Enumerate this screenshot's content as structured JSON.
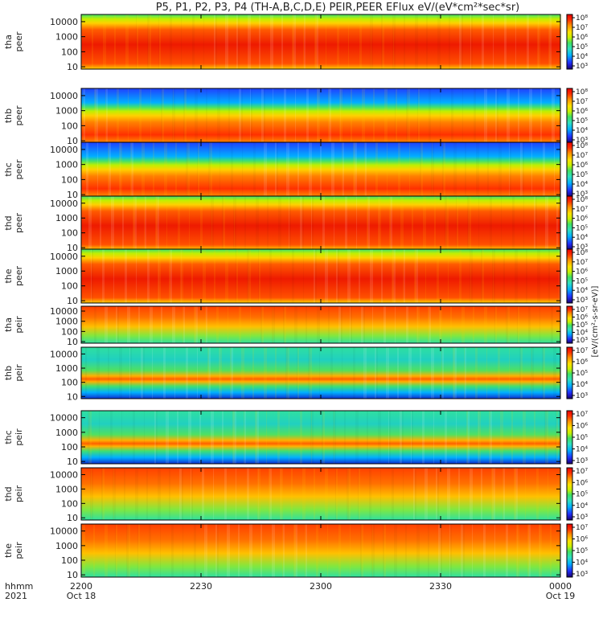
{
  "title": "P5, P1, P2, P3, P4 (TH-A,B,C,D,E) PEIR,PEER EFlux eV/(eV*cm²*sec*sr)",
  "colorbar_unit": "[eV/(cm²-s-sr-eV)]",
  "chart_data": {
    "type": "heatmap",
    "xaxis": {
      "label_top": "hhmm",
      "label_bottom": "2021",
      "ticks": [
        {
          "value": "2200",
          "date": "Oct 18"
        },
        {
          "value": "2230",
          "date": ""
        },
        {
          "value": "2300",
          "date": ""
        },
        {
          "value": "2330",
          "date": ""
        },
        {
          "value": "0000",
          "date": "Oct 19"
        }
      ]
    },
    "ylog": true,
    "ylim": [
      7,
      30000
    ],
    "yticks": [
      "10000",
      "1000",
      "100",
      "10"
    ],
    "panels": [
      {
        "probe": "tha",
        "species": "peer",
        "cbar_ticks": [
          "10⁸",
          "10⁷",
          "10⁶",
          "10⁵",
          "10⁴",
          "10³"
        ]
      },
      {
        "probe": "thb",
        "species": "peer",
        "cbar_ticks": [
          "10⁸",
          "10⁷",
          "10⁶",
          "10⁵",
          "10⁴",
          "10³"
        ]
      },
      {
        "probe": "thc",
        "species": "peer",
        "cbar_ticks": [
          "10⁸",
          "10⁷",
          "10⁶",
          "10⁵",
          "10⁴",
          "10³"
        ]
      },
      {
        "probe": "thd",
        "species": "peer",
        "cbar_ticks": [
          "10⁸",
          "10⁷",
          "10⁶",
          "10⁵",
          "10⁴",
          "10³"
        ]
      },
      {
        "probe": "the",
        "species": "peer",
        "cbar_ticks": [
          "10⁸",
          "10⁷",
          "10⁶",
          "10⁵",
          "10⁴",
          "10³"
        ]
      },
      {
        "probe": "tha",
        "species": "peir",
        "cbar_ticks": [
          "10⁷",
          "10⁶",
          "10⁵",
          "10⁴",
          "10³"
        ]
      },
      {
        "probe": "thb",
        "species": "peir",
        "cbar_ticks": [
          "10⁷",
          "10⁶",
          "10⁵",
          "10⁴",
          "10³"
        ]
      },
      {
        "probe": "thc",
        "species": "peir",
        "cbar_ticks": [
          "10⁷",
          "10⁶",
          "10⁵",
          "10⁴",
          "10³"
        ]
      },
      {
        "probe": "thd",
        "species": "peir",
        "cbar_ticks": [
          "10⁷",
          "10⁶",
          "10⁵",
          "10⁴",
          "10³"
        ]
      },
      {
        "probe": "the",
        "species": "peir",
        "cbar_ticks": [
          "10⁷",
          "10⁶",
          "10⁵",
          "10⁴",
          "10³"
        ]
      }
    ],
    "colormap": [
      "#1a0070",
      "#2030ff",
      "#00b0ff",
      "#30e0c0",
      "#40e060",
      "#c8f000",
      "#ffe000",
      "#ff9000",
      "#ff3000",
      "#e80000"
    ]
  }
}
